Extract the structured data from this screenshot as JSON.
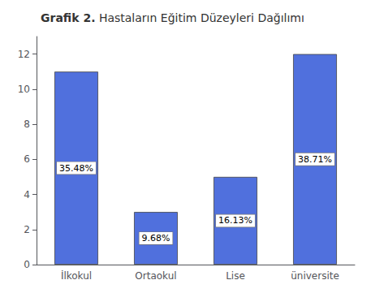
{
  "chart_data": {
    "type": "bar",
    "title": "Grafik 2. Hastaların Eğitim Düzeyleri Dağılımı",
    "categories": [
      "İlkokul",
      "Ortaokul",
      "Lise",
      "üniversite"
    ],
    "values": [
      11,
      3,
      5,
      12
    ],
    "annotations": [
      "35.48%",
      "9.68%",
      "16.13%",
      "38.71%"
    ],
    "ylim": [
      0,
      13
    ],
    "yticks": [
      0,
      2,
      4,
      6,
      8,
      10,
      12
    ],
    "grid": false
  }
}
